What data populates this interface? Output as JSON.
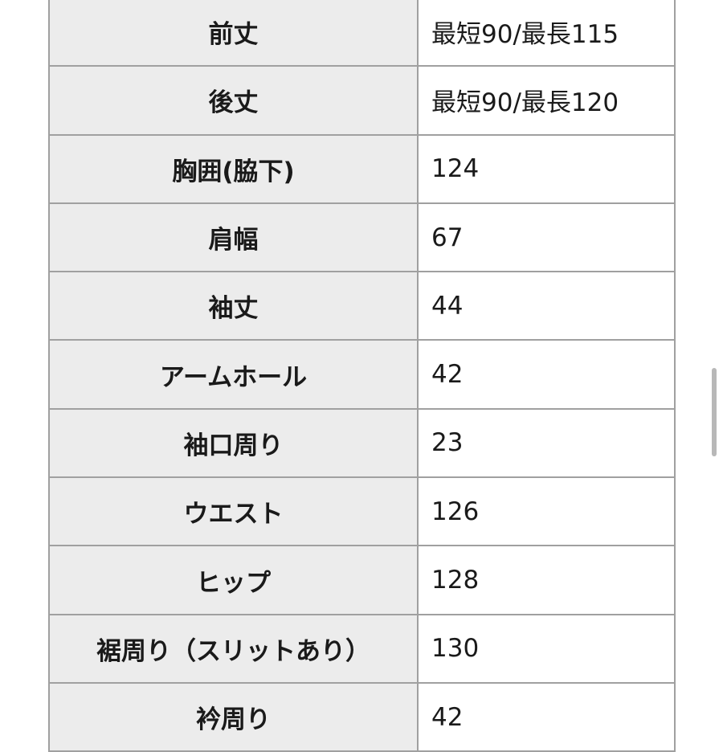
{
  "table": {
    "rows": [
      [
        "前丈",
        "最短90/最長115"
      ],
      [
        "後丈",
        "最短90/最長120"
      ],
      [
        "胸囲(脇下)",
        124
      ],
      [
        "肩幅",
        67
      ],
      [
        "袖丈",
        44
      ],
      [
        "アームホール",
        42
      ],
      [
        "袖口周り",
        23
      ],
      [
        "ウエスト",
        126
      ],
      [
        "ヒップ",
        128
      ],
      [
        "裾周り（スリットあり）",
        130
      ],
      [
        "衿周り",
        42
      ]
    ]
  }
}
